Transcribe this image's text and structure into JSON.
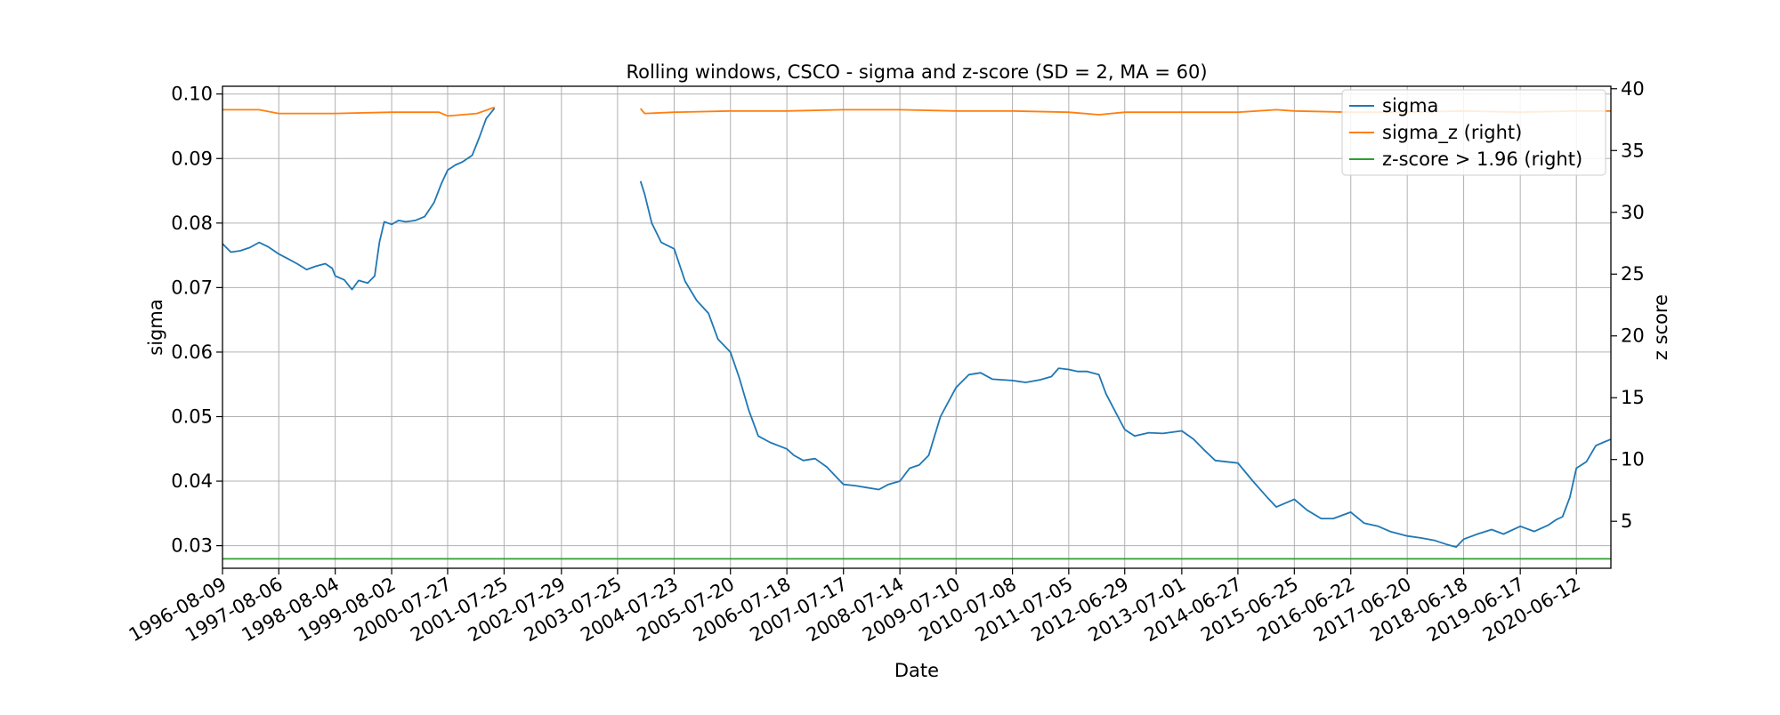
{
  "chart_data": {
    "type": "line",
    "title": "Rolling windows, CSCO - sigma and z-score (SD = 2, MA = 60)",
    "xlabel": "Date",
    "ylabel": "sigma",
    "y2label": "z score",
    "xlim": [
      "1996-08-09",
      "2021-01-20"
    ],
    "ylim": [
      0.0265,
      0.1012
    ],
    "y2lim": [
      1.2,
      40.2
    ],
    "x_ticks": [
      "1996-08-09",
      "1997-08-06",
      "1998-08-04",
      "1999-08-02",
      "2000-07-27",
      "2001-07-25",
      "2002-07-29",
      "2003-07-25",
      "2004-07-23",
      "2005-07-20",
      "2006-07-18",
      "2007-07-17",
      "2008-07-14",
      "2009-07-10",
      "2010-07-08",
      "2011-07-05",
      "2012-06-29",
      "2013-07-01",
      "2014-06-27",
      "2015-06-25",
      "2016-06-22",
      "2017-06-20",
      "2018-06-18",
      "2019-06-17",
      "2020-06-12"
    ],
    "y_ticks": [
      "0.03",
      "0.04",
      "0.05",
      "0.06",
      "0.07",
      "0.08",
      "0.09",
      "0.10"
    ],
    "y2_ticks": [
      "5",
      "10",
      "15",
      "20",
      "25",
      "30",
      "35",
      "40"
    ],
    "grid": true,
    "legend_position": "top-right",
    "colors": {
      "sigma": "#1f77b4",
      "sigma_z": "#ff7f0e",
      "zthreshold": "#2ca02c"
    },
    "series": [
      {
        "name": "sigma",
        "axis": "left",
        "color": "#1f77b4",
        "segments": [
          [
            [
              "1996-08-09",
              0.0768
            ],
            [
              "1996-10-01",
              0.0755
            ],
            [
              "1996-12-01",
              0.0757
            ],
            [
              "1997-02-01",
              0.0762
            ],
            [
              "1997-04-01",
              0.077
            ],
            [
              "1997-06-01",
              0.0763
            ],
            [
              "1997-08-06",
              0.0752
            ],
            [
              "1997-10-01",
              0.0745
            ],
            [
              "1997-12-01",
              0.0737
            ],
            [
              "1998-02-01",
              0.0728
            ],
            [
              "1998-04-01",
              0.0733
            ],
            [
              "1998-06-01",
              0.0737
            ],
            [
              "1998-07-15",
              0.073
            ],
            [
              "1998-08-04",
              0.0718
            ],
            [
              "1998-10-01",
              0.0712
            ],
            [
              "1998-11-20",
              0.0697
            ],
            [
              "1999-01-01",
              0.0711
            ],
            [
              "1999-03-01",
              0.0707
            ],
            [
              "1999-04-15",
              0.0718
            ],
            [
              "1999-05-15",
              0.077
            ],
            [
              "1999-06-15",
              0.0802
            ],
            [
              "1999-08-02",
              0.0798
            ],
            [
              "1999-09-15",
              0.0804
            ],
            [
              "1999-11-01",
              0.0802
            ],
            [
              "2000-01-01",
              0.0804
            ],
            [
              "2000-03-01",
              0.081
            ],
            [
              "2000-05-01",
              0.0832
            ],
            [
              "2000-06-15",
              0.086
            ],
            [
              "2000-07-27",
              0.0882
            ],
            [
              "2000-09-15",
              0.089
            ],
            [
              "2000-11-01",
              0.0895
            ],
            [
              "2001-01-01",
              0.0905
            ],
            [
              "2001-02-15",
              0.0932
            ],
            [
              "2001-04-01",
              0.0962
            ],
            [
              "2001-05-25",
              0.0978
            ]
          ],
          [
            [
              "2003-12-20",
              0.0865
            ],
            [
              "2004-01-15",
              0.0845
            ],
            [
              "2004-03-01",
              0.08
            ],
            [
              "2004-05-01",
              0.077
            ],
            [
              "2004-07-23",
              0.076
            ],
            [
              "2004-10-01",
              0.071
            ],
            [
              "2004-12-15",
              0.068
            ],
            [
              "2005-03-01",
              0.066
            ],
            [
              "2005-05-01",
              0.062
            ],
            [
              "2005-07-20",
              0.06
            ],
            [
              "2005-09-15",
              0.056
            ],
            [
              "2005-11-15",
              0.051
            ],
            [
              "2006-01-15",
              0.047
            ],
            [
              "2006-04-01",
              0.046
            ],
            [
              "2006-07-18",
              0.045
            ],
            [
              "2006-09-01",
              0.044
            ],
            [
              "2006-11-01",
              0.0432
            ],
            [
              "2007-01-15",
              0.0435
            ],
            [
              "2007-04-01",
              0.0422
            ],
            [
              "2007-07-17",
              0.0395
            ],
            [
              "2007-10-01",
              0.0393
            ],
            [
              "2007-12-15",
              0.039
            ],
            [
              "2008-03-01",
              0.0387
            ],
            [
              "2008-05-01",
              0.0395
            ],
            [
              "2008-07-14",
              0.04
            ],
            [
              "2008-09-15",
              0.042
            ],
            [
              "2008-11-15",
              0.0425
            ],
            [
              "2009-01-15",
              0.044
            ],
            [
              "2009-04-01",
              0.05
            ],
            [
              "2009-07-10",
              0.0545
            ],
            [
              "2009-10-01",
              0.0565
            ],
            [
              "2009-12-15",
              0.0568
            ],
            [
              "2010-03-01",
              0.0558
            ],
            [
              "2010-07-08",
              0.0556
            ],
            [
              "2010-10-01",
              0.0553
            ],
            [
              "2011-01-01",
              0.0557
            ],
            [
              "2011-03-15",
              0.0562
            ],
            [
              "2011-05-01",
              0.0575
            ],
            [
              "2011-07-05",
              0.0573
            ],
            [
              "2011-09-01",
              0.057
            ],
            [
              "2011-11-01",
              0.057
            ],
            [
              "2012-01-15",
              0.0565
            ],
            [
              "2012-03-01",
              0.0535
            ],
            [
              "2012-06-29",
              0.048
            ],
            [
              "2012-09-01",
              0.047
            ],
            [
              "2012-12-01",
              0.0475
            ],
            [
              "2013-03-01",
              0.0474
            ],
            [
              "2013-07-01",
              0.0478
            ],
            [
              "2013-09-15",
              0.0465
            ],
            [
              "2013-11-15",
              0.045
            ],
            [
              "2014-02-01",
              0.0432
            ],
            [
              "2014-06-27",
              0.0428
            ],
            [
              "2014-10-01",
              0.04
            ],
            [
              "2015-01-01",
              0.0375
            ],
            [
              "2015-03-01",
              0.036
            ],
            [
              "2015-06-25",
              0.0372
            ],
            [
              "2015-09-15",
              0.0355
            ],
            [
              "2015-12-15",
              0.0342
            ],
            [
              "2016-03-01",
              0.0342
            ],
            [
              "2016-06-22",
              0.0352
            ],
            [
              "2016-09-15",
              0.0335
            ],
            [
              "2016-12-15",
              0.033
            ],
            [
              "2017-03-01",
              0.0322
            ],
            [
              "2017-06-20",
              0.0315
            ],
            [
              "2017-09-15",
              0.0312
            ],
            [
              "2017-12-15",
              0.0308
            ],
            [
              "2018-03-01",
              0.0302
            ],
            [
              "2018-05-01",
              0.0298
            ],
            [
              "2018-06-18",
              0.031
            ],
            [
              "2018-09-15",
              0.0318
            ],
            [
              "2018-12-15",
              0.0325
            ],
            [
              "2019-03-01",
              0.0318
            ],
            [
              "2019-06-17",
              0.033
            ],
            [
              "2019-09-15",
              0.0322
            ],
            [
              "2019-12-15",
              0.0332
            ],
            [
              "2020-02-01",
              0.034
            ],
            [
              "2020-03-15",
              0.0345
            ],
            [
              "2020-05-01",
              0.0375
            ],
            [
              "2020-06-12",
              0.042
            ],
            [
              "2020-08-15",
              0.043
            ],
            [
              "2020-10-15",
              0.0455
            ],
            [
              "2020-12-01",
              0.046
            ],
            [
              "2021-01-20",
              0.0465
            ]
          ]
        ]
      },
      {
        "name": "sigma_z (right)",
        "axis": "right",
        "color": "#ff7f0e",
        "segments": [
          [
            [
              "1996-08-09",
              38.3
            ],
            [
              "1997-04-01",
              38.3
            ],
            [
              "1997-08-06",
              38.0
            ],
            [
              "1998-08-04",
              38.0
            ],
            [
              "1999-08-02",
              38.1
            ],
            [
              "2000-06-01",
              38.1
            ],
            [
              "2000-07-27",
              37.8
            ],
            [
              "2000-11-01",
              37.9
            ],
            [
              "2001-02-01",
              38.0
            ],
            [
              "2001-05-25",
              38.5
            ]
          ],
          [
            [
              "2003-12-20",
              38.4
            ],
            [
              "2004-01-15",
              38.0
            ],
            [
              "2004-07-23",
              38.1
            ],
            [
              "2005-07-20",
              38.2
            ],
            [
              "2006-07-18",
              38.2
            ],
            [
              "2007-07-17",
              38.3
            ],
            [
              "2008-07-14",
              38.3
            ],
            [
              "2009-07-10",
              38.2
            ],
            [
              "2010-07-08",
              38.2
            ],
            [
              "2011-07-05",
              38.1
            ],
            [
              "2012-01-15",
              37.9
            ],
            [
              "2012-06-29",
              38.1
            ],
            [
              "2013-07-01",
              38.1
            ],
            [
              "2014-06-27",
              38.1
            ],
            [
              "2015-03-01",
              38.3
            ],
            [
              "2015-06-25",
              38.2
            ],
            [
              "2016-06-22",
              38.1
            ],
            [
              "2017-06-20",
              38.1
            ],
            [
              "2018-06-18",
              38.2
            ],
            [
              "2019-06-17",
              38.1
            ],
            [
              "2020-06-12",
              38.2
            ],
            [
              "2021-01-20",
              38.2
            ]
          ]
        ]
      },
      {
        "name": "z-score > 1.96 (right)",
        "axis": "right",
        "color": "#2ca02c",
        "segments": [
          [
            [
              "1996-08-09",
              1.96
            ],
            [
              "2021-01-20",
              1.96
            ]
          ]
        ]
      }
    ]
  }
}
